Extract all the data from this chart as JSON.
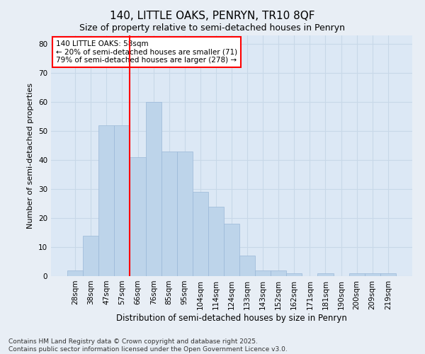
{
  "title1": "140, LITTLE OAKS, PENRYN, TR10 8QF",
  "title2": "Size of property relative to semi-detached houses in Penryn",
  "xlabel": "Distribution of semi-detached houses by size in Penryn",
  "ylabel": "Number of semi-detached properties",
  "categories": [
    "28sqm",
    "38sqm",
    "47sqm",
    "57sqm",
    "66sqm",
    "76sqm",
    "85sqm",
    "95sqm",
    "104sqm",
    "114sqm",
    "124sqm",
    "133sqm",
    "143sqm",
    "152sqm",
    "162sqm",
    "171sqm",
    "181sqm",
    "190sqm",
    "200sqm",
    "209sqm",
    "219sqm"
  ],
  "values": [
    2,
    14,
    52,
    52,
    41,
    60,
    43,
    43,
    29,
    24,
    18,
    7,
    2,
    2,
    1,
    0,
    1,
    0,
    1,
    1,
    1
  ],
  "bar_color": "#bdd4ea",
  "bar_edge_color": "#9ab8d8",
  "red_line_x": 3.5,
  "annotation_title": "140 LITTLE OAKS: 58sqm",
  "annotation_line1": "← 20% of semi-detached houses are smaller (71)",
  "annotation_line2": "79% of semi-detached houses are larger (278) →",
  "ylim": [
    0,
    83
  ],
  "yticks": [
    0,
    10,
    20,
    30,
    40,
    50,
    60,
    70,
    80
  ],
  "footer1": "Contains HM Land Registry data © Crown copyright and database right 2025.",
  "footer2": "Contains public sector information licensed under the Open Government Licence v3.0.",
  "bg_color": "#e8eef5",
  "plot_bg_color": "#dce8f5",
  "grid_color": "#c8d8e8",
  "title1_fontsize": 11,
  "title2_fontsize": 9,
  "xlabel_fontsize": 8.5,
  "ylabel_fontsize": 8,
  "tick_fontsize": 7.5,
  "annotation_fontsize": 7.5,
  "footer_fontsize": 6.5
}
